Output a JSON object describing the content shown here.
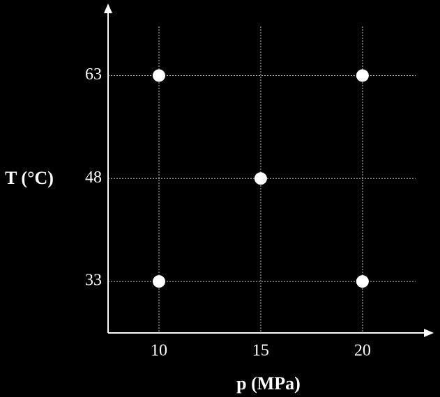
{
  "chart_data": {
    "type": "scatter",
    "x_label": "p (MPa)",
    "y_label": "T (°C)",
    "x": [
      10,
      20,
      15,
      10,
      20
    ],
    "values": [
      63,
      63,
      48,
      33,
      33
    ],
    "color": "#ffffff",
    "xlim": [
      7.5,
      23.5
    ],
    "xticks": [
      10,
      15,
      20
    ],
    "ylim": [
      25.5,
      73.5
    ],
    "yticks": [
      33,
      48,
      63
    ],
    "grid": true
  }
}
